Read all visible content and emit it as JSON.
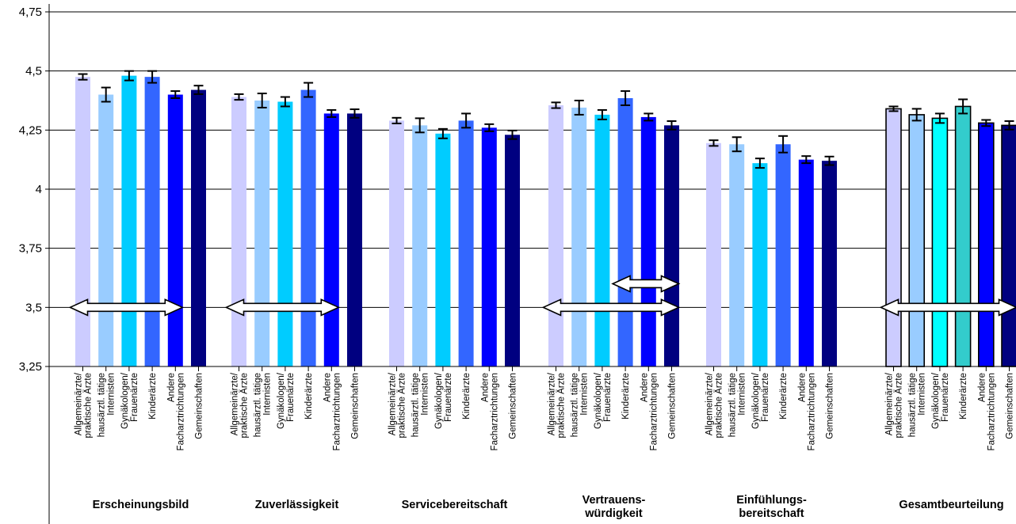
{
  "chart_data": {
    "type": "bar",
    "ylim": [
      3.25,
      4.75
    ],
    "yticks": [
      "4,75",
      "4,5",
      "4,25",
      "4",
      "3,75",
      "3,5",
      "3,25"
    ],
    "ytick_values": [
      4.75,
      4.5,
      4.25,
      4.0,
      3.75,
      3.5,
      3.25
    ],
    "grid": true,
    "categories": [
      [
        "Allgemeinärzte/",
        "praktische Ärzte"
      ],
      [
        "hausärztl. tätige",
        "Internisten"
      ],
      [
        "Gynäkologen/",
        "Frauenärzte"
      ],
      [
        "Kinderärzte"
      ],
      [
        "Andere",
        "Facharztrichtungen"
      ],
      [
        "Gemeinschaften"
      ]
    ],
    "bar_colors": [
      "#ccccff",
      "#99ccff",
      "#00ccff",
      "#3366ff",
      "#0000ff",
      "#000080"
    ],
    "total_bar_colors": [
      "#ccccff",
      "#99ccff",
      "#00ffff",
      "#33cccc",
      "#0000ff",
      "#000080"
    ],
    "groups": [
      {
        "label": [
          "Erscheinungsbild"
        ],
        "values": [
          4.475,
          4.4,
          4.48,
          4.475,
          4.4,
          4.42
        ],
        "errors": [
          0.012,
          0.03,
          0.02,
          0.025,
          0.015,
          0.018
        ],
        "arrows": [
          {
            "from": 0,
            "to": 4,
            "y": 3.5
          }
        ]
      },
      {
        "label": [
          "Zuverlässigkeit"
        ],
        "values": [
          4.39,
          4.375,
          4.37,
          4.42,
          4.32,
          4.32
        ],
        "errors": [
          0.012,
          0.03,
          0.02,
          0.03,
          0.015,
          0.018
        ],
        "arrows": [
          {
            "from": 0,
            "to": 4,
            "y": 3.5
          }
        ]
      },
      {
        "label": [
          "Servicebereitschaft"
        ],
        "values": [
          4.29,
          4.27,
          4.235,
          4.29,
          4.26,
          4.23
        ],
        "errors": [
          0.012,
          0.03,
          0.02,
          0.03,
          0.015,
          0.018
        ],
        "arrows": []
      },
      {
        "label": [
          "Vertrauens-",
          "würdigkeit"
        ],
        "values": [
          4.355,
          4.345,
          4.315,
          4.385,
          4.305,
          4.27
        ],
        "errors": [
          0.012,
          0.03,
          0.02,
          0.03,
          0.015,
          0.018
        ],
        "arrows": [
          {
            "from": 0,
            "to": 5,
            "y": 3.5
          },
          {
            "from": 3,
            "to": 5,
            "y": 3.6
          }
        ]
      },
      {
        "label": [
          "Einfühlungs-",
          "bereitschaft"
        ],
        "values": [
          4.195,
          4.19,
          4.11,
          4.19,
          4.125,
          4.12
        ],
        "errors": [
          0.012,
          0.03,
          0.02,
          0.035,
          0.015,
          0.018
        ],
        "arrows": []
      },
      {
        "label": [
          "Gesamtbeurteilung"
        ],
        "values": [
          4.34,
          4.315,
          4.3,
          4.35,
          4.28,
          4.27
        ],
        "errors": [
          0.01,
          0.025,
          0.02,
          0.03,
          0.013,
          0.018
        ],
        "arrows": [
          {
            "from": 0,
            "to": 5,
            "y": 3.5
          }
        ]
      }
    ]
  }
}
